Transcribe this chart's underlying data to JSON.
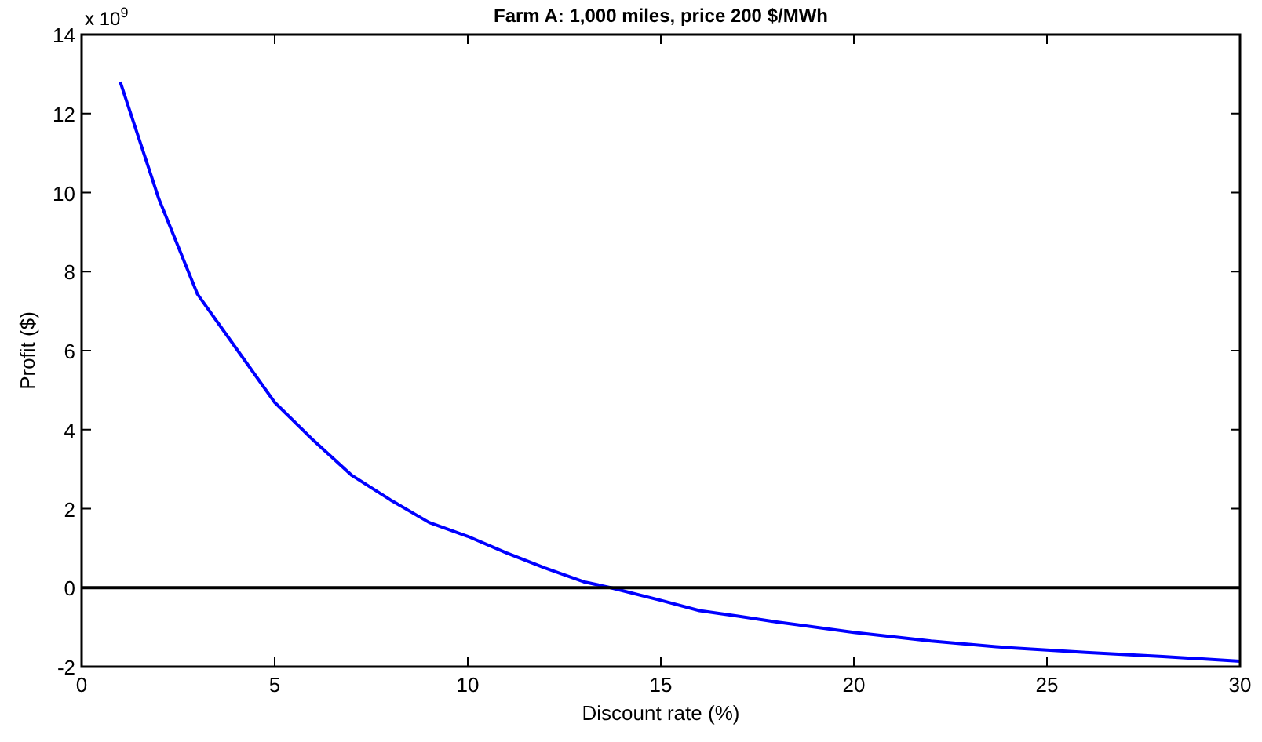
{
  "chart_data": {
    "type": "line",
    "title": "Farm A: 1,000 miles, price 200 $/MWh",
    "xlabel": "Discount rate (%)",
    "ylabel": "Profit ($)",
    "annotations": [
      "x 10$^{9}$"
    ],
    "x": [
      1,
      2,
      3,
      4,
      5,
      6,
      7,
      8,
      9,
      10,
      11,
      12,
      13,
      13.7,
      15,
      16,
      17,
      18,
      20,
      22,
      24,
      26,
      28,
      30
    ],
    "series": [
      {
        "color": "#0000ff",
        "values": [
          12.8,
          9.84,
          7.43,
          6.06,
          4.69,
          3.73,
          2.84,
          2.22,
          1.65,
          1.3,
          0.88,
          0.5,
          0.15,
          0,
          -0.32,
          -0.58,
          -0.72,
          -0.87,
          -1.13,
          -1.35,
          -1.52,
          -1.64,
          -1.74,
          -1.86
        ]
      }
    ],
    "xlim": [
      0,
      30
    ],
    "xticks": [
      0,
      5,
      10,
      15,
      20,
      25,
      30
    ],
    "ylim": [
      -2,
      14
    ],
    "yticks": [
      -2,
      0,
      2,
      4,
      6,
      8,
      10,
      12,
      14
    ],
    "ref_lines": [
      {
        "axis": "y",
        "value": 0,
        "color": "#000000"
      }
    ]
  }
}
